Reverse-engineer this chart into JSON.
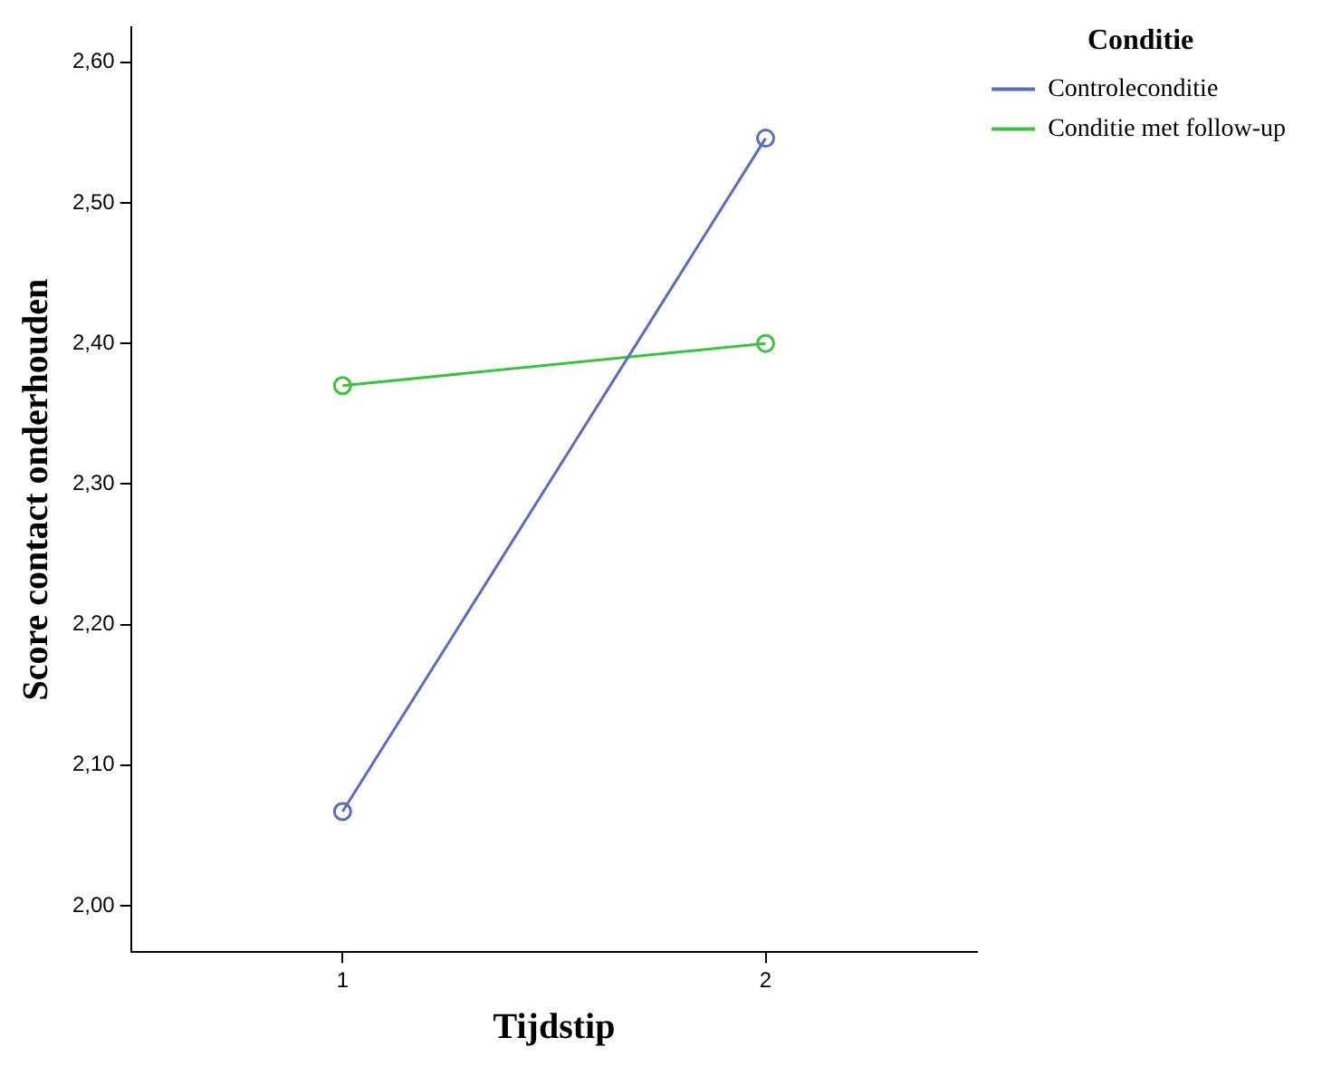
{
  "chart_data": {
    "type": "line",
    "xlabel": "Tijdstip",
    "ylabel": "Score contact onderhouden",
    "legend_title": "Conditie",
    "categories": [
      "1",
      "2"
    ],
    "series": [
      {
        "name": "Controleconditie",
        "color": "#5b6bbf",
        "values": [
          2.067,
          2.546
        ]
      },
      {
        "name": "Conditie met follow-up",
        "color": "#3cc23c",
        "values": [
          2.37,
          2.4
        ]
      }
    ],
    "ylim": [
      1.967,
      2.625
    ],
    "yticks": [
      {
        "value": 2.0,
        "label": "2,00"
      },
      {
        "value": 2.1,
        "label": "2,10"
      },
      {
        "value": 2.2,
        "label": "2,20"
      },
      {
        "value": 2.3,
        "label": "2,30"
      },
      {
        "value": 2.4,
        "label": "2,40"
      },
      {
        "value": 2.5,
        "label": "2,50"
      },
      {
        "value": 2.6,
        "label": "2,60"
      }
    ],
    "grid": false,
    "legend": "right",
    "marker": "circle",
    "line_style": "solid"
  }
}
